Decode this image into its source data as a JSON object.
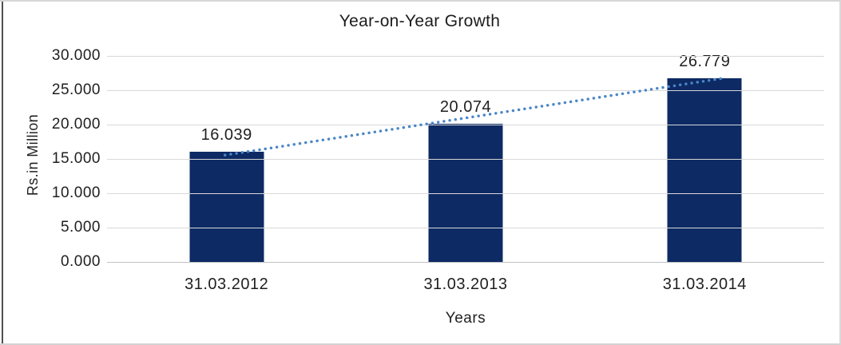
{
  "chart_data": {
    "type": "bar",
    "title": "Year-on-Year Growth",
    "xlabel": "Years",
    "ylabel": "Rs.in Million",
    "categories": [
      "31.03.2012",
      "31.03.2013",
      "31.03.2014"
    ],
    "values": [
      16.039,
      20.074,
      26.779
    ],
    "data_labels": [
      "16.039",
      "20.074",
      "26.779"
    ],
    "ylim": [
      0,
      30
    ],
    "ytick_step": 5,
    "ytick_labels": [
      "30.000",
      "25.000",
      "20.000",
      "15.000",
      "10.000",
      "5.000",
      "0.000"
    ],
    "grid": true,
    "legend_position": "none",
    "bar_color": "#0d2a64",
    "trendline": {
      "type": "linear",
      "style": "dotted",
      "color": "#4a86c8"
    },
    "gridline_color": "#d8d8d8",
    "axis_line_color": "#c2c2c2",
    "text_color": "#1f1f1f"
  }
}
